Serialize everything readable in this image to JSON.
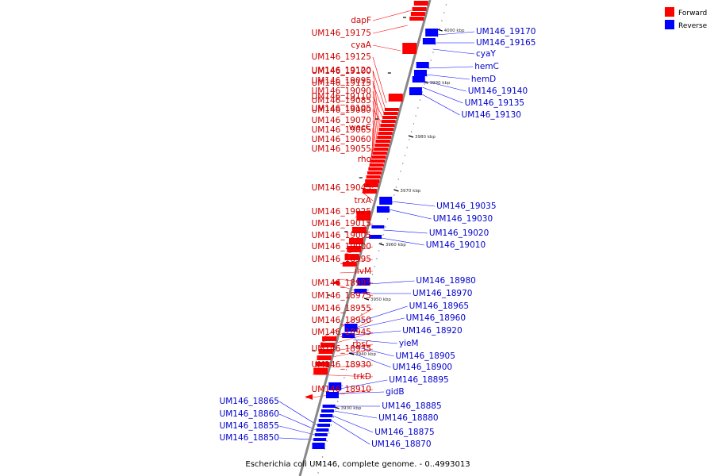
{
  "colors": {
    "forward": "#ff0000",
    "reverse": "#0000ff",
    "backbone": "#888888",
    "forward_label": "#cc0000",
    "reverse_label": "#0000cc"
  },
  "legend": {
    "forward": "Forward",
    "reverse": "Reverse"
  },
  "caption": "Escherichia coli UM146, complete genome. - 0..4993013",
  "scale_marks": [
    "4000 kbp",
    "3990 kbp",
    "3980 kbp",
    "3970 kbp",
    "3960 kbp",
    "3950 kbp",
    "3940 kbp",
    "3930 kbp"
  ],
  "forward_genes": [
    "dapF",
    "UM146_19175",
    "cyaA",
    "UM146_19125",
    "UM146_19120",
    "UM146_19115",
    "UM146_19110",
    "UM146_19105",
    "UM146_19100",
    "UM146_19095",
    "UM146_19090",
    "UM146_19085",
    "UM146_19080",
    "UM146_19070",
    "UM146_19065",
    "wecC",
    "UM146_19060",
    "UM146_19055",
    "rho",
    "UM146_19045",
    "trxA",
    "UM146_19025",
    "UM146_19015",
    "UM146_19005",
    "UM146_19000",
    "UM146_18995",
    "ilvM",
    "UM146_18985",
    "UM146_18975",
    "UM146_18955",
    "UM146_18950",
    "UM146_18945",
    "rbsC",
    "UM146_18935",
    "UM146_18930",
    "trkD",
    "UM146_18910"
  ],
  "reverse_genes": [
    "UM146_19170",
    "UM146_19165",
    "cyaY",
    "hemC",
    "hemD",
    "UM146_19140",
    "UM146_19135",
    "UM146_19130",
    "UM146_19035",
    "UM146_19030",
    "UM146_19020",
    "UM146_19010",
    "UM146_18980",
    "UM146_18970",
    "UM146_18965",
    "UM146_18960",
    "UM146_18920",
    "yieM",
    "UM146_18905",
    "UM146_18900",
    "UM146_18895",
    "gidB",
    "UM146_18885",
    "UM146_18880",
    "UM146_18875",
    "UM146_18870",
    "UM146_18865",
    "UM146_18860",
    "UM146_18855",
    "UM146_18850"
  ]
}
